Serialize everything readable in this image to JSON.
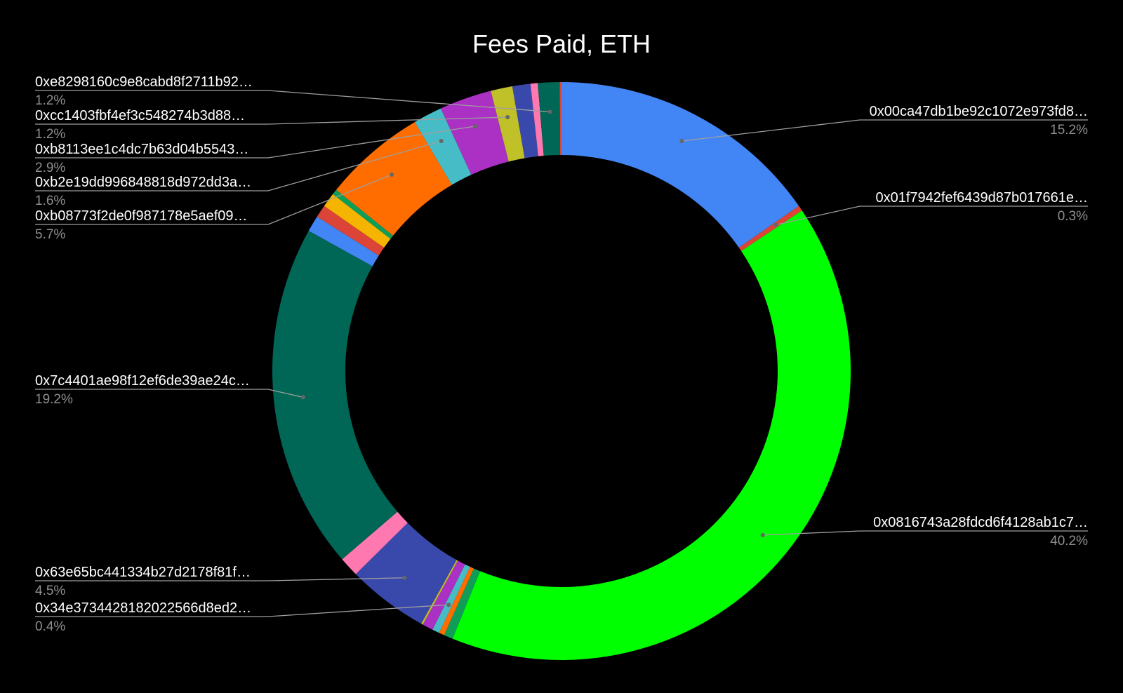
{
  "chart_data": {
    "type": "pie",
    "title": "Fees Paid, ETH",
    "slices": [
      {
        "label": "0x00ca47db1be92c1072e973fd8…",
        "pct_label": "15.2%",
        "value": 15.2,
        "color": "#4285f4"
      },
      {
        "label": "0x01f7942fef6439d87b017661e…",
        "pct_label": "0.3%",
        "value": 0.3,
        "color": "#db4437"
      },
      {
        "label": "0x0816743a28fdcd6f4128ab1c7…",
        "pct_label": "40.2%",
        "value": 40.2,
        "color": "#00ff00"
      },
      {
        "label": "",
        "pct_label": "",
        "value": 0.5,
        "color": "#0f9d58"
      },
      {
        "label": "",
        "pct_label": "",
        "value": 0.3,
        "color": "#ff6d00"
      },
      {
        "label": "0x34e373442818202256 6d8ed2…",
        "pct_label": "0.4%",
        "value": 0.4,
        "color": "#46bdc6"
      },
      {
        "label": "",
        "pct_label": "",
        "value": 0.6,
        "color": "#ab30c4"
      },
      {
        "label": "",
        "pct_label": "",
        "value": 0.1,
        "color": "#c0c028"
      },
      {
        "label": "0x63e65bc441334b27d2178f81f…",
        "pct_label": "4.5%",
        "value": 4.5,
        "color": "#3949ab"
      },
      {
        "label": "",
        "pct_label": "",
        "value": 1.1,
        "color": "#ff79b0"
      },
      {
        "label": "0x7c4401ae98f12ef6de39ae24c…",
        "pct_label": "19.2%",
        "value": 19.2,
        "color": "#006655"
      },
      {
        "label": "",
        "pct_label": "",
        "value": 0.9,
        "color": "#4285f4"
      },
      {
        "label": "",
        "pct_label": "",
        "value": 0.7,
        "color": "#db4437"
      },
      {
        "label": "",
        "pct_label": "",
        "value": 0.8,
        "color": "#f4b400"
      },
      {
        "label": "",
        "pct_label": "",
        "value": 0.3,
        "color": "#0f9d58"
      },
      {
        "label": "0xb08773f2de0f987178e5aef09…",
        "pct_label": "5.7%",
        "value": 5.7,
        "color": "#ff6d00"
      },
      {
        "label": "0xb2e19dd996848818d972dd3a…",
        "pct_label": "1.6%",
        "value": 1.6,
        "color": "#46bdc6"
      },
      {
        "label": "0xb8113ee1c4dc7b63d04b5543…",
        "pct_label": "2.9%",
        "value": 2.9,
        "color": "#ab30c4"
      },
      {
        "label": "0xcc1403fbf4ef3c548274b3d88…",
        "pct_label": "1.2%",
        "value": 1.2,
        "color": "#c0c028"
      },
      {
        "label": "",
        "pct_label": "",
        "value": 1.0,
        "color": "#3949ab"
      },
      {
        "label": "",
        "pct_label": "",
        "value": 0.4,
        "color": "#ff79b0"
      },
      {
        "label": "0xe8298160c9e8cabd8f2711b92…",
        "pct_label": "1.2%",
        "value": 1.2,
        "color": "#006655"
      },
      {
        "label": "",
        "pct_label": "",
        "value": 0.1,
        "color": "#db4437"
      }
    ]
  }
}
